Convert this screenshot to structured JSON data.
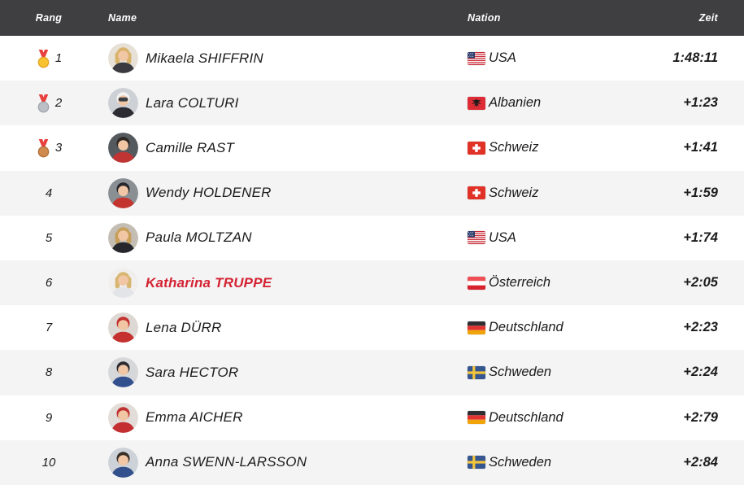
{
  "table": {
    "columns": {
      "rank": "Rang",
      "name": "Name",
      "nation": "Nation",
      "time": "Zeit"
    }
  },
  "colors": {
    "header_bg": "#3f3f41",
    "row_bg": "#ffffff",
    "row_alt_bg": "#f4f4f5",
    "text": "#1b1b1c",
    "highlight": "#d42333",
    "ribbon_red": "#e8403c",
    "medal_gold": "#f7c331",
    "medal_gold_ring": "#e09f1f",
    "medal_silver": "#bcc0c6",
    "medal_silver_ring": "#9aa0a8",
    "medal_bronze": "#cf8a4e",
    "medal_bronze_ring": "#ad6b33"
  },
  "rows": [
    {
      "rank": "1",
      "medal": "gold",
      "name": "Mikaela SHIFFRIN",
      "highlight": false,
      "nation": "USA",
      "flag": "us",
      "time": "1:48:11",
      "avatar": {
        "bg": "#e7e0d6",
        "top": "#d9b26a",
        "jacket": "#3a3a40",
        "long_hair": true,
        "goggles": false
      }
    },
    {
      "rank": "2",
      "medal": "silver",
      "name": "Lara COLTURI",
      "highlight": false,
      "nation": "Albanien",
      "flag": "al",
      "time": "+1:23",
      "avatar": {
        "bg": "#cdd1d6",
        "top": "#f3f3f1",
        "jacket": "#2c2c32",
        "long_hair": false,
        "goggles": true
      }
    },
    {
      "rank": "3",
      "medal": "bronze",
      "name": "Camille RAST",
      "highlight": false,
      "nation": "Schweiz",
      "flag": "ch",
      "time": "+1:41",
      "avatar": {
        "bg": "#555a5e",
        "top": "#2e2622",
        "jacket": "#c03434",
        "long_hair": false,
        "goggles": false
      }
    },
    {
      "rank": "4",
      "medal": null,
      "name": "Wendy HOLDENER",
      "highlight": false,
      "nation": "Schweiz",
      "flag": "ch",
      "time": "+1:59",
      "avatar": {
        "bg": "#8a8f93",
        "top": "#26262c",
        "jacket": "#c4342e",
        "long_hair": false,
        "goggles": false
      }
    },
    {
      "rank": "5",
      "medal": null,
      "name": "Paula MOLTZAN",
      "highlight": false,
      "nation": "USA",
      "flag": "us",
      "time": "+1:74",
      "avatar": {
        "bg": "#c4bdb4",
        "top": "#c79f58",
        "jacket": "#26262c",
        "long_hair": true,
        "goggles": false
      }
    },
    {
      "rank": "6",
      "medal": null,
      "name": "Katharina TRUPPE",
      "highlight": true,
      "nation": "Österreich",
      "flag": "at",
      "time": "+2:05",
      "avatar": {
        "bg": "#f1efee",
        "top": "#d8b671",
        "jacket": "#e3e4e8",
        "long_hair": true,
        "goggles": false
      }
    },
    {
      "rank": "7",
      "medal": null,
      "name": "Lena DÜRR",
      "highlight": false,
      "nation": "Deutschland",
      "flag": "de",
      "time": "+2:23",
      "avatar": {
        "bg": "#ddd8d3",
        "top": "#c4312e",
        "jacket": "#c4312e",
        "long_hair": false,
        "goggles": false
      }
    },
    {
      "rank": "8",
      "medal": null,
      "name": "Sara HECTOR",
      "highlight": false,
      "nation": "Schweden",
      "flag": "se",
      "time": "+2:24",
      "avatar": {
        "bg": "#d6d7d9",
        "top": "#2b2b30",
        "jacket": "#33508e",
        "long_hair": false,
        "goggles": false
      }
    },
    {
      "rank": "9",
      "medal": null,
      "name": "Emma AICHER",
      "highlight": false,
      "nation": "Deutschland",
      "flag": "de",
      "time": "+2:79",
      "avatar": {
        "bg": "#e2ddd8",
        "top": "#c02f30",
        "jacket": "#c43032",
        "long_hair": false,
        "goggles": false
      }
    },
    {
      "rank": "10",
      "medal": null,
      "name": "Anna SWENN-LARSSON",
      "highlight": false,
      "nation": "Schweden",
      "flag": "se",
      "time": "+2:84",
      "avatar": {
        "bg": "#ccd2d8",
        "top": "#383028",
        "jacket": "#32508c",
        "long_hair": false,
        "goggles": false
      }
    }
  ]
}
